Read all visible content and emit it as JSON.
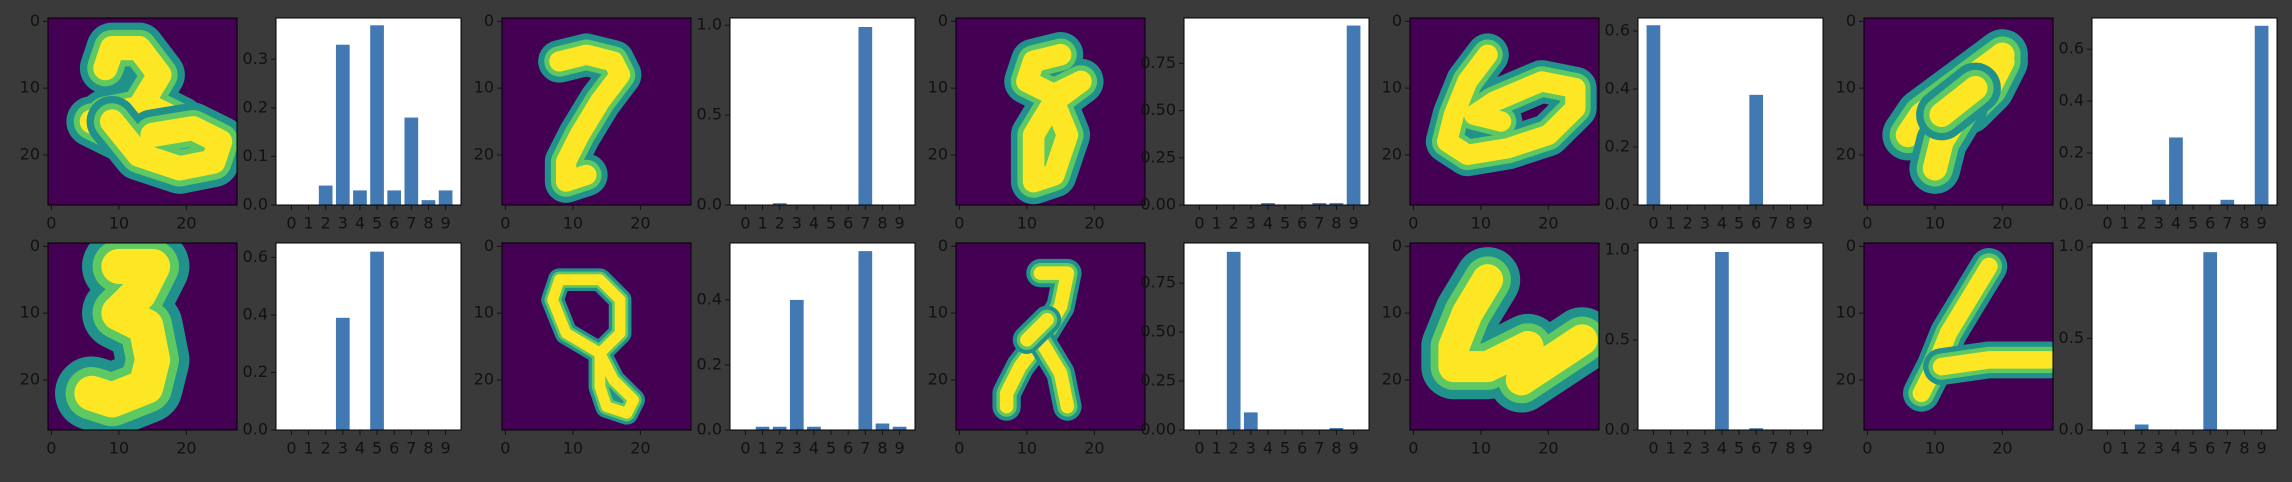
{
  "figure": {
    "background": "#3a3a3a",
    "bar_color": "#4379b2",
    "image_colormap": "viridis"
  },
  "chart_data": [
    {
      "type": "heatmap",
      "label": "digit image",
      "xticks": [
        "0",
        "10",
        "20"
      ],
      "yticks": [
        "0",
        "10",
        "20"
      ],
      "xlim": [
        -0.5,
        27.5
      ],
      "ylim": [
        27.5,
        -0.5
      ],
      "strokes": [
        [
          [
            8,
            7
          ],
          [
            9,
            4
          ],
          [
            13,
            4
          ],
          [
            16,
            8
          ],
          [
            13,
            13
          ],
          [
            8,
            14
          ],
          [
            15,
            13
          ],
          [
            19,
            15
          ],
          [
            15,
            18
          ],
          [
            10,
            17
          ],
          [
            6,
            15
          ]
        ],
        [
          [
            9,
            15
          ],
          [
            13,
            20
          ],
          [
            19,
            22
          ],
          [
            24,
            21
          ],
          [
            25,
            18
          ],
          [
            21,
            16
          ],
          [
            15,
            17
          ]
        ]
      ],
      "stroke_width": 3.6
    },
    {
      "type": "bar",
      "label": "class probabilities",
      "categories": [
        "0",
        "1",
        "2",
        "3",
        "4",
        "5",
        "6",
        "7",
        "8",
        "9"
      ],
      "values": [
        0.0,
        0.0,
        0.04,
        0.33,
        0.03,
        0.37,
        0.03,
        0.18,
        0.01,
        0.03
      ],
      "ylim": [
        0,
        0.385
      ],
      "yticks": [
        0.0,
        0.1,
        0.2,
        0.3
      ],
      "ytick_labels": [
        "0.0",
        "0.1",
        "0.2",
        "0.3"
      ]
    },
    {
      "type": "heatmap",
      "label": "digit image",
      "xticks": [
        "0",
        "10",
        "20"
      ],
      "yticks": [
        "0",
        "10",
        "20"
      ],
      "xlim": [
        -0.5,
        27.5
      ],
      "ylim": [
        27.5,
        -0.5
      ],
      "strokes": [
        [
          [
            8,
            6
          ],
          [
            12,
            5
          ],
          [
            16,
            6
          ],
          [
            17,
            8
          ],
          [
            14,
            12
          ],
          [
            11,
            17
          ],
          [
            9,
            21
          ],
          [
            9,
            24
          ],
          [
            12,
            23
          ]
        ]
      ],
      "stroke_width": 3.0
    },
    {
      "type": "bar",
      "label": "class probabilities",
      "categories": [
        "0",
        "1",
        "2",
        "3",
        "4",
        "5",
        "6",
        "7",
        "8",
        "9"
      ],
      "values": [
        0.0,
        0.0,
        0.01,
        0.0,
        0.0,
        0.0,
        0.0,
        0.99,
        0.0,
        0.0
      ],
      "ylim": [
        0,
        1.04
      ],
      "yticks": [
        0.0,
        0.5,
        1.0
      ],
      "ytick_labels": [
        "0.0",
        "0.5",
        "1.0"
      ]
    },
    {
      "type": "heatmap",
      "label": "digit image",
      "xticks": [
        "0",
        "10",
        "20"
      ],
      "yticks": [
        "0",
        "10",
        "20"
      ],
      "xlim": [
        -0.5,
        27.5
      ],
      "ylim": [
        27.5,
        -0.5
      ],
      "strokes": [
        [
          [
            15,
            5
          ],
          [
            11,
            6
          ],
          [
            10,
            9
          ],
          [
            14,
            11
          ],
          [
            18,
            9
          ],
          [
            14,
            12
          ],
          [
            11,
            17
          ],
          [
            11,
            24
          ],
          [
            14,
            23
          ],
          [
            16,
            17
          ],
          [
            14,
            12
          ]
        ]
      ],
      "stroke_width": 3.2
    },
    {
      "type": "bar",
      "label": "class probabilities",
      "categories": [
        "0",
        "1",
        "2",
        "3",
        "4",
        "5",
        "6",
        "7",
        "8",
        "9"
      ],
      "values": [
        0.0,
        0.0,
        0.0,
        0.0,
        0.01,
        0.0,
        0.0,
        0.01,
        0.01,
        0.95
      ],
      "ylim": [
        0,
        0.99
      ],
      "yticks": [
        0.0,
        0.25,
        0.5,
        0.75
      ],
      "ytick_labels": [
        "0.00",
        "0.25",
        "0.50",
        "0.75"
      ]
    },
    {
      "type": "heatmap",
      "label": "digit image",
      "xticks": [
        "0",
        "10",
        "20"
      ],
      "yticks": [
        "0",
        "10",
        "20"
      ],
      "xlim": [
        -0.5,
        27.5
      ],
      "ylim": [
        27.5,
        -0.5
      ],
      "strokes": [
        [
          [
            11,
            5
          ],
          [
            8,
            9
          ],
          [
            6,
            14
          ],
          [
            5,
            18
          ],
          [
            8,
            20
          ],
          [
            14,
            19
          ],
          [
            20,
            17
          ],
          [
            24,
            13
          ],
          [
            24,
            10
          ],
          [
            19,
            9
          ],
          [
            12,
            12
          ],
          [
            9,
            14
          ],
          [
            13,
            15
          ]
        ]
      ],
      "stroke_width": 3.0
    },
    {
      "type": "bar",
      "label": "class probabilities",
      "categories": [
        "0",
        "1",
        "2",
        "3",
        "4",
        "5",
        "6",
        "7",
        "8",
        "9"
      ],
      "values": [
        0.62,
        0.0,
        0.0,
        0.0,
        0.0,
        0.0,
        0.38,
        0.0,
        0.0,
        0.0
      ],
      "ylim": [
        0,
        0.645
      ],
      "yticks": [
        0.0,
        0.2,
        0.4,
        0.6
      ],
      "ytick_labels": [
        "0.0",
        "0.2",
        "0.4",
        "0.6"
      ]
    },
    {
      "type": "heatmap",
      "label": "digit image",
      "xticks": [
        "0",
        "10",
        "20"
      ],
      "yticks": [
        "0",
        "10",
        "20"
      ],
      "xlim": [
        -0.5,
        27.5
      ],
      "ylim": [
        27.5,
        -0.5
      ],
      "strokes": [
        [
          [
            20,
            5
          ],
          [
            16,
            8
          ],
          [
            12,
            11
          ],
          [
            8,
            14
          ],
          [
            6,
            17
          ],
          [
            11,
            15
          ],
          [
            15,
            13
          ],
          [
            18,
            10
          ],
          [
            20,
            6
          ]
        ],
        [
          [
            14,
            13
          ],
          [
            11,
            18
          ],
          [
            10,
            22
          ]
        ],
        [
          [
            16,
            10
          ],
          [
            11,
            14
          ]
        ]
      ],
      "stroke_width": 3.6
    },
    {
      "type": "bar",
      "label": "class probabilities",
      "categories": [
        "0",
        "1",
        "2",
        "3",
        "4",
        "5",
        "6",
        "7",
        "8",
        "9"
      ],
      "values": [
        0.0,
        0.0,
        0.0,
        0.02,
        0.26,
        0.0,
        0.0,
        0.02,
        0.0,
        0.69
      ],
      "ylim": [
        0,
        0.72
      ],
      "yticks": [
        0.0,
        0.2,
        0.4,
        0.6
      ],
      "ytick_labels": [
        "0.0",
        "0.2",
        "0.4",
        "0.6"
      ]
    },
    {
      "type": "heatmap",
      "label": "digit image",
      "xticks": [
        "0",
        "10",
        "20"
      ],
      "yticks": [
        "0",
        "10",
        "20"
      ],
      "xlim": [
        -0.5,
        27.5
      ],
      "ylim": [
        27.5,
        -0.5
      ],
      "strokes": [
        [
          [
            10,
            3
          ],
          [
            15,
            3
          ],
          [
            13,
            7
          ],
          [
            10,
            10
          ],
          [
            14,
            12
          ],
          [
            15,
            17
          ],
          [
            14,
            21
          ],
          [
            9,
            23
          ],
          [
            6,
            22
          ]
        ]
      ],
      "stroke_width": 5.2
    },
    {
      "type": "bar",
      "label": "class probabilities",
      "categories": [
        "0",
        "1",
        "2",
        "3",
        "4",
        "5",
        "6",
        "7",
        "8",
        "9"
      ],
      "values": [
        0.0,
        0.0,
        0.0,
        0.39,
        0.0,
        0.62,
        0.0,
        0.0,
        0.0,
        0.0
      ],
      "ylim": [
        0,
        0.65
      ],
      "yticks": [
        0.0,
        0.2,
        0.4,
        0.6
      ],
      "ytick_labels": [
        "0.0",
        "0.2",
        "0.4",
        "0.6"
      ]
    },
    {
      "type": "heatmap",
      "label": "digit image",
      "xticks": [
        "0",
        "10",
        "20"
      ],
      "yticks": [
        "0",
        "10",
        "20"
      ],
      "xlim": [
        -0.5,
        27.5
      ],
      "ylim": [
        27.5,
        -0.5
      ],
      "strokes": [
        [
          [
            8,
            5
          ],
          [
            14,
            5
          ],
          [
            17,
            8
          ],
          [
            17,
            13
          ],
          [
            14,
            16
          ],
          [
            16,
            20
          ],
          [
            19,
            23
          ],
          [
            18,
            25
          ],
          [
            15,
            24
          ],
          [
            14,
            21
          ],
          [
            14,
            16
          ],
          [
            9,
            13
          ],
          [
            7,
            8
          ],
          [
            8,
            5
          ]
        ]
      ],
      "stroke_width": 1.6
    },
    {
      "type": "bar",
      "label": "class probabilities",
      "categories": [
        "0",
        "1",
        "2",
        "3",
        "4",
        "5",
        "6",
        "7",
        "8",
        "9"
      ],
      "values": [
        0.0,
        0.01,
        0.01,
        0.4,
        0.01,
        0.0,
        0.0,
        0.55,
        0.02,
        0.01
      ],
      "ylim": [
        0,
        0.575
      ],
      "yticks": [
        0.0,
        0.2,
        0.4
      ],
      "ytick_labels": [
        "0.0",
        "0.2",
        "0.4"
      ]
    },
    {
      "type": "heatmap",
      "label": "digit image",
      "xticks": [
        "0",
        "10",
        "20"
      ],
      "yticks": [
        "0",
        "10",
        "20"
      ],
      "xlim": [
        -0.5,
        27.5
      ],
      "ylim": [
        27.5,
        -0.5
      ],
      "strokes": [
        [
          [
            12,
            4
          ],
          [
            16,
            4
          ],
          [
            15,
            9
          ],
          [
            12,
            14
          ],
          [
            9,
            18
          ],
          [
            7,
            22
          ],
          [
            7,
            24
          ]
        ],
        [
          [
            12,
            14
          ],
          [
            15,
            19
          ],
          [
            16,
            24
          ]
        ],
        [
          [
            10,
            14
          ],
          [
            13,
            11
          ]
        ]
      ],
      "stroke_width": 2.0
    },
    {
      "type": "bar",
      "label": "class probabilities",
      "categories": [
        "0",
        "1",
        "2",
        "3",
        "4",
        "5",
        "6",
        "7",
        "8",
        "9"
      ],
      "values": [
        0.0,
        0.0,
        0.91,
        0.09,
        0.0,
        0.0,
        0.0,
        0.0,
        0.01,
        0.0
      ],
      "ylim": [
        0,
        0.955
      ],
      "yticks": [
        0.0,
        0.25,
        0.5,
        0.75
      ],
      "ytick_labels": [
        "0.00",
        "0.25",
        "0.50",
        "0.75"
      ]
    },
    {
      "type": "heatmap",
      "label": "digit image",
      "xticks": [
        "0",
        "10",
        "20"
      ],
      "yticks": [
        "0",
        "10",
        "20"
      ],
      "xlim": [
        -0.5,
        27.5
      ],
      "ylim": [
        27.5,
        -0.5
      ],
      "strokes": [
        [
          [
            11,
            5
          ],
          [
            8,
            10
          ],
          [
            6,
            15
          ],
          [
            6,
            18
          ],
          [
            11,
            18
          ],
          [
            17,
            15
          ],
          [
            16,
            20
          ],
          [
            22,
            16
          ],
          [
            25,
            14
          ]
        ]
      ],
      "stroke_width": 4.6
    },
    {
      "type": "bar",
      "label": "class probabilities",
      "categories": [
        "0",
        "1",
        "2",
        "3",
        "4",
        "5",
        "6",
        "7",
        "8",
        "9"
      ],
      "values": [
        0.0,
        0.0,
        0.0,
        0.0,
        0.99,
        0.0,
        0.01,
        0.0,
        0.0,
        0.0
      ],
      "ylim": [
        0,
        1.04
      ],
      "yticks": [
        0.0,
        0.5,
        1.0
      ],
      "ytick_labels": [
        "0.0",
        "0.5",
        "1.0"
      ]
    },
    {
      "type": "heatmap",
      "label": "digit image",
      "xticks": [
        "0",
        "10",
        "20"
      ],
      "yticks": [
        "0",
        "10",
        "20"
      ],
      "xlim": [
        -0.5,
        27.5
      ],
      "ylim": [
        27.5,
        -0.5
      ],
      "strokes": [
        [
          [
            18,
            3
          ],
          [
            15,
            8
          ],
          [
            12,
            13
          ],
          [
            10,
            18
          ],
          [
            8,
            22
          ]
        ],
        [
          [
            11,
            18
          ],
          [
            18,
            17
          ],
          [
            27,
            17
          ]
        ]
      ],
      "stroke_width": 2.6
    },
    {
      "type": "bar",
      "label": "class probabilities",
      "categories": [
        "0",
        "1",
        "2",
        "3",
        "4",
        "5",
        "6",
        "7",
        "8",
        "9"
      ],
      "values": [
        0.0,
        0.0,
        0.03,
        0.0,
        0.0,
        0.0,
        0.97,
        0.0,
        0.0,
        0.0
      ],
      "ylim": [
        0,
        1.02
      ],
      "yticks": [
        0.0,
        0.5,
        1.0
      ],
      "ytick_labels": [
        "0.0",
        "0.5",
        "1.0"
      ]
    }
  ]
}
